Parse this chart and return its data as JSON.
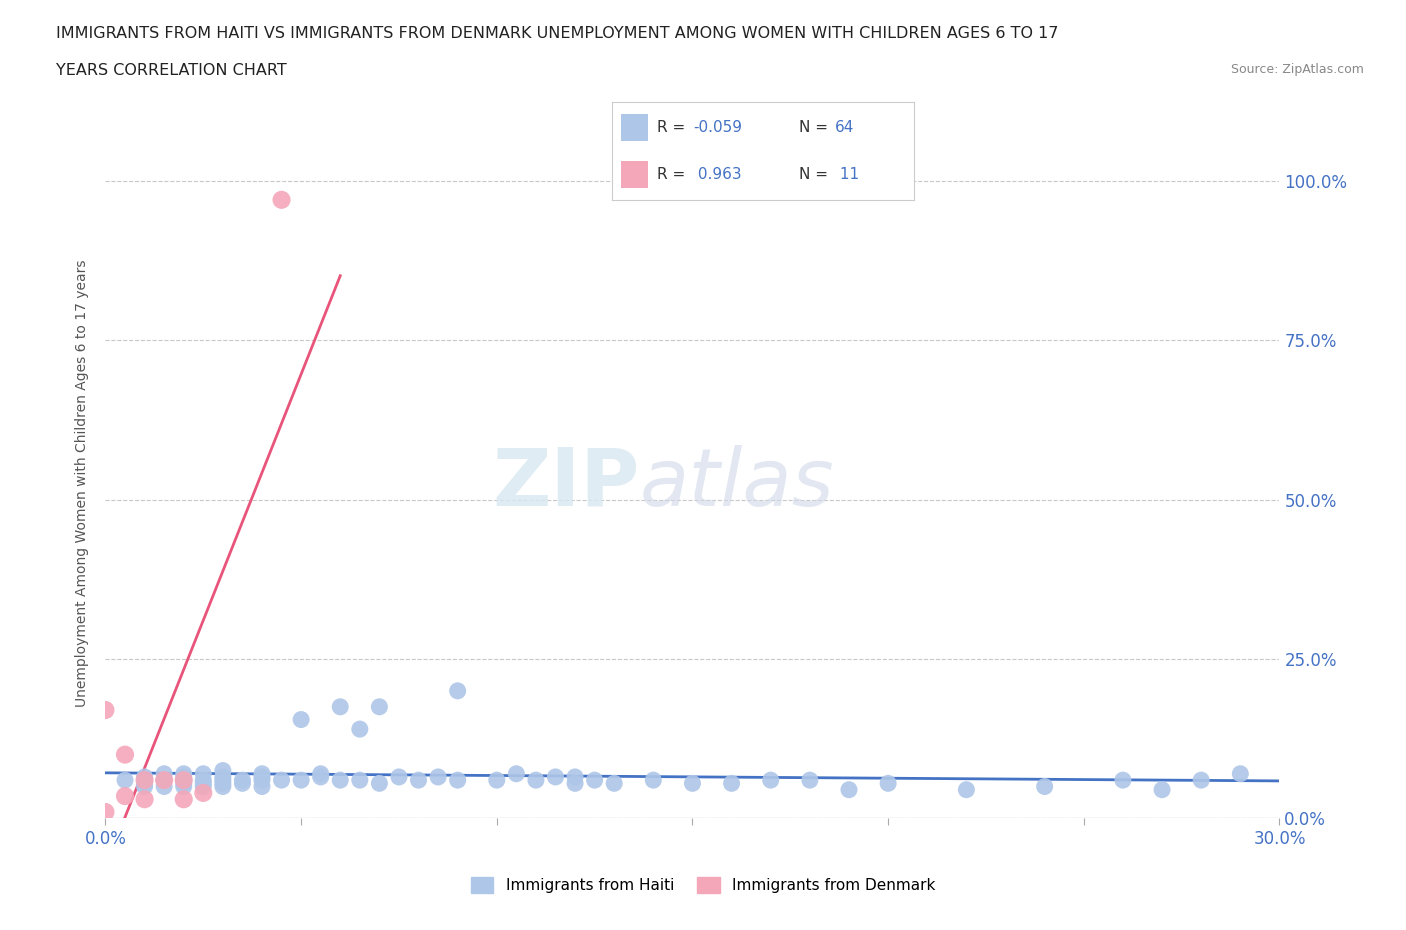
{
  "title_line1": "IMMIGRANTS FROM HAITI VS IMMIGRANTS FROM DENMARK UNEMPLOYMENT AMONG WOMEN WITH CHILDREN AGES 6 TO 17",
  "title_line2": "YEARS CORRELATION CHART",
  "source_text": "Source: ZipAtlas.com",
  "ylabel": "Unemployment Among Women with Children Ages 6 to 17 years",
  "xlim": [
    0.0,
    0.3
  ],
  "ylim": [
    0.0,
    1.05
  ],
  "x_ticks": [
    0.0,
    0.05,
    0.1,
    0.15,
    0.2,
    0.25,
    0.3
  ],
  "y_ticks": [
    0.0,
    0.25,
    0.5,
    0.75,
    1.0
  ],
  "y_tick_labels": [
    "0.0%",
    "25.0%",
    "50.0%",
    "75.0%",
    "100.0%"
  ],
  "haiti_color": "#aec6e8",
  "denmark_color": "#f4a7b9",
  "haiti_line_color": "#4472c4",
  "denmark_line_color": "#e8547a",
  "legend_r_haiti": "-0.059",
  "legend_n_haiti": "64",
  "legend_r_denmark": "0.963",
  "legend_n_denmark": "11",
  "watermark_zip": "ZIP",
  "watermark_atlas": "atlas",
  "haiti_x": [
    0.005,
    0.01,
    0.01,
    0.01,
    0.015,
    0.015,
    0.015,
    0.02,
    0.02,
    0.02,
    0.02,
    0.02,
    0.025,
    0.025,
    0.025,
    0.025,
    0.03,
    0.03,
    0.03,
    0.03,
    0.03,
    0.035,
    0.035,
    0.04,
    0.04,
    0.04,
    0.04,
    0.045,
    0.05,
    0.05,
    0.055,
    0.055,
    0.06,
    0.06,
    0.065,
    0.065,
    0.07,
    0.07,
    0.075,
    0.08,
    0.085,
    0.09,
    0.09,
    0.1,
    0.105,
    0.11,
    0.115,
    0.12,
    0.12,
    0.125,
    0.13,
    0.14,
    0.15,
    0.16,
    0.17,
    0.18,
    0.19,
    0.2,
    0.22,
    0.24,
    0.26,
    0.27,
    0.28,
    0.29
  ],
  "haiti_y": [
    0.06,
    0.05,
    0.055,
    0.065,
    0.05,
    0.06,
    0.07,
    0.05,
    0.055,
    0.06,
    0.065,
    0.07,
    0.05,
    0.055,
    0.06,
    0.07,
    0.05,
    0.055,
    0.06,
    0.065,
    0.075,
    0.055,
    0.06,
    0.05,
    0.06,
    0.065,
    0.07,
    0.06,
    0.06,
    0.155,
    0.065,
    0.07,
    0.06,
    0.175,
    0.06,
    0.14,
    0.055,
    0.175,
    0.065,
    0.06,
    0.065,
    0.06,
    0.2,
    0.06,
    0.07,
    0.06,
    0.065,
    0.055,
    0.065,
    0.06,
    0.055,
    0.06,
    0.055,
    0.055,
    0.06,
    0.06,
    0.045,
    0.055,
    0.045,
    0.05,
    0.06,
    0.045,
    0.06,
    0.07
  ],
  "denmark_x": [
    0.0,
    0.0,
    0.005,
    0.005,
    0.01,
    0.01,
    0.015,
    0.02,
    0.02,
    0.025,
    0.045
  ],
  "denmark_y": [
    0.01,
    0.17,
    0.035,
    0.1,
    0.03,
    0.06,
    0.06,
    0.03,
    0.06,
    0.04,
    0.97
  ]
}
